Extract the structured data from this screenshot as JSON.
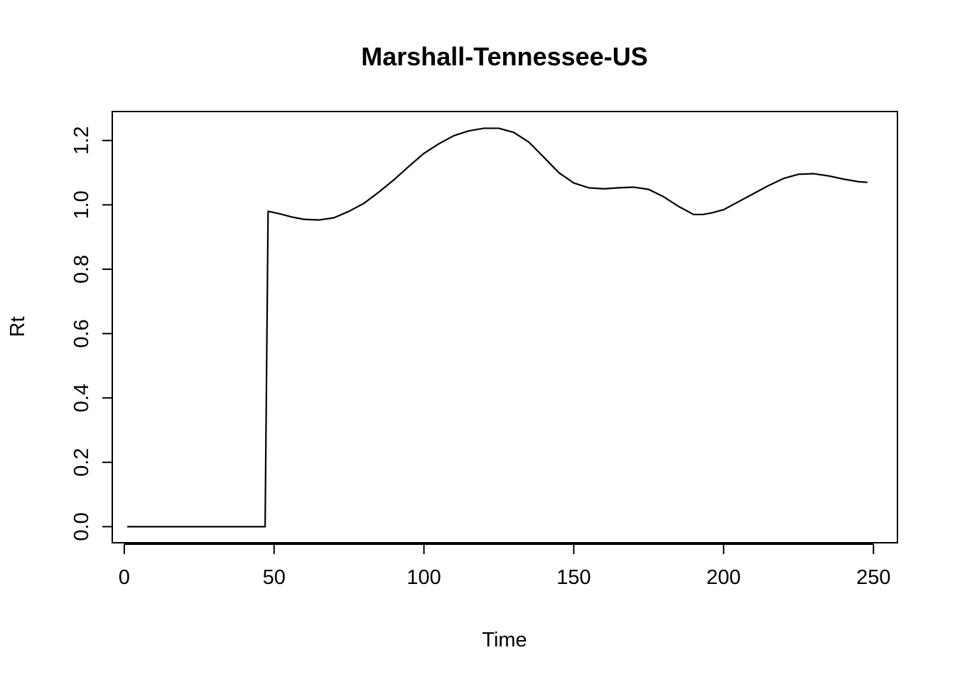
{
  "chart_data": {
    "type": "line",
    "title": "Marshall-Tennessee-US",
    "xlabel": "Time",
    "ylabel": "Rt",
    "xlim": [
      -4,
      258
    ],
    "ylim": [
      -0.05,
      1.29
    ],
    "x_ticks": [
      0,
      50,
      100,
      150,
      200,
      250
    ],
    "x_tick_labels": [
      "0",
      "50",
      "100",
      "150",
      "200",
      "250"
    ],
    "y_ticks": [
      0.0,
      0.2,
      0.4,
      0.6,
      0.8,
      1.0,
      1.2
    ],
    "y_tick_labels": [
      "0.0",
      "0.2",
      "0.4",
      "0.6",
      "0.8",
      "1.0",
      "1.2"
    ],
    "grid": false,
    "series": [
      {
        "x": [
          1,
          10,
          20,
          30,
          40,
          47,
          48,
          52,
          56,
          60,
          65,
          70,
          75,
          80,
          85,
          90,
          95,
          100,
          105,
          110,
          115,
          120,
          125,
          130,
          135,
          140,
          145,
          150,
          155,
          160,
          165,
          170,
          175,
          180,
          185,
          189,
          190,
          193,
          196,
          200,
          205,
          210,
          215,
          220,
          225,
          230,
          235,
          240,
          245,
          248
        ],
        "y": [
          0,
          0,
          0,
          0,
          0,
          0,
          0.98,
          0.972,
          0.962,
          0.955,
          0.953,
          0.96,
          0.98,
          1.005,
          1.04,
          1.078,
          1.12,
          1.16,
          1.19,
          1.215,
          1.23,
          1.238,
          1.238,
          1.225,
          1.195,
          1.148,
          1.1,
          1.068,
          1.053,
          1.05,
          1.053,
          1.055,
          1.048,
          1.025,
          0.995,
          0.975,
          0.97,
          0.97,
          0.975,
          0.985,
          1.01,
          1.035,
          1.06,
          1.082,
          1.095,
          1.097,
          1.09,
          1.08,
          1.072,
          1.07
        ]
      }
    ]
  }
}
